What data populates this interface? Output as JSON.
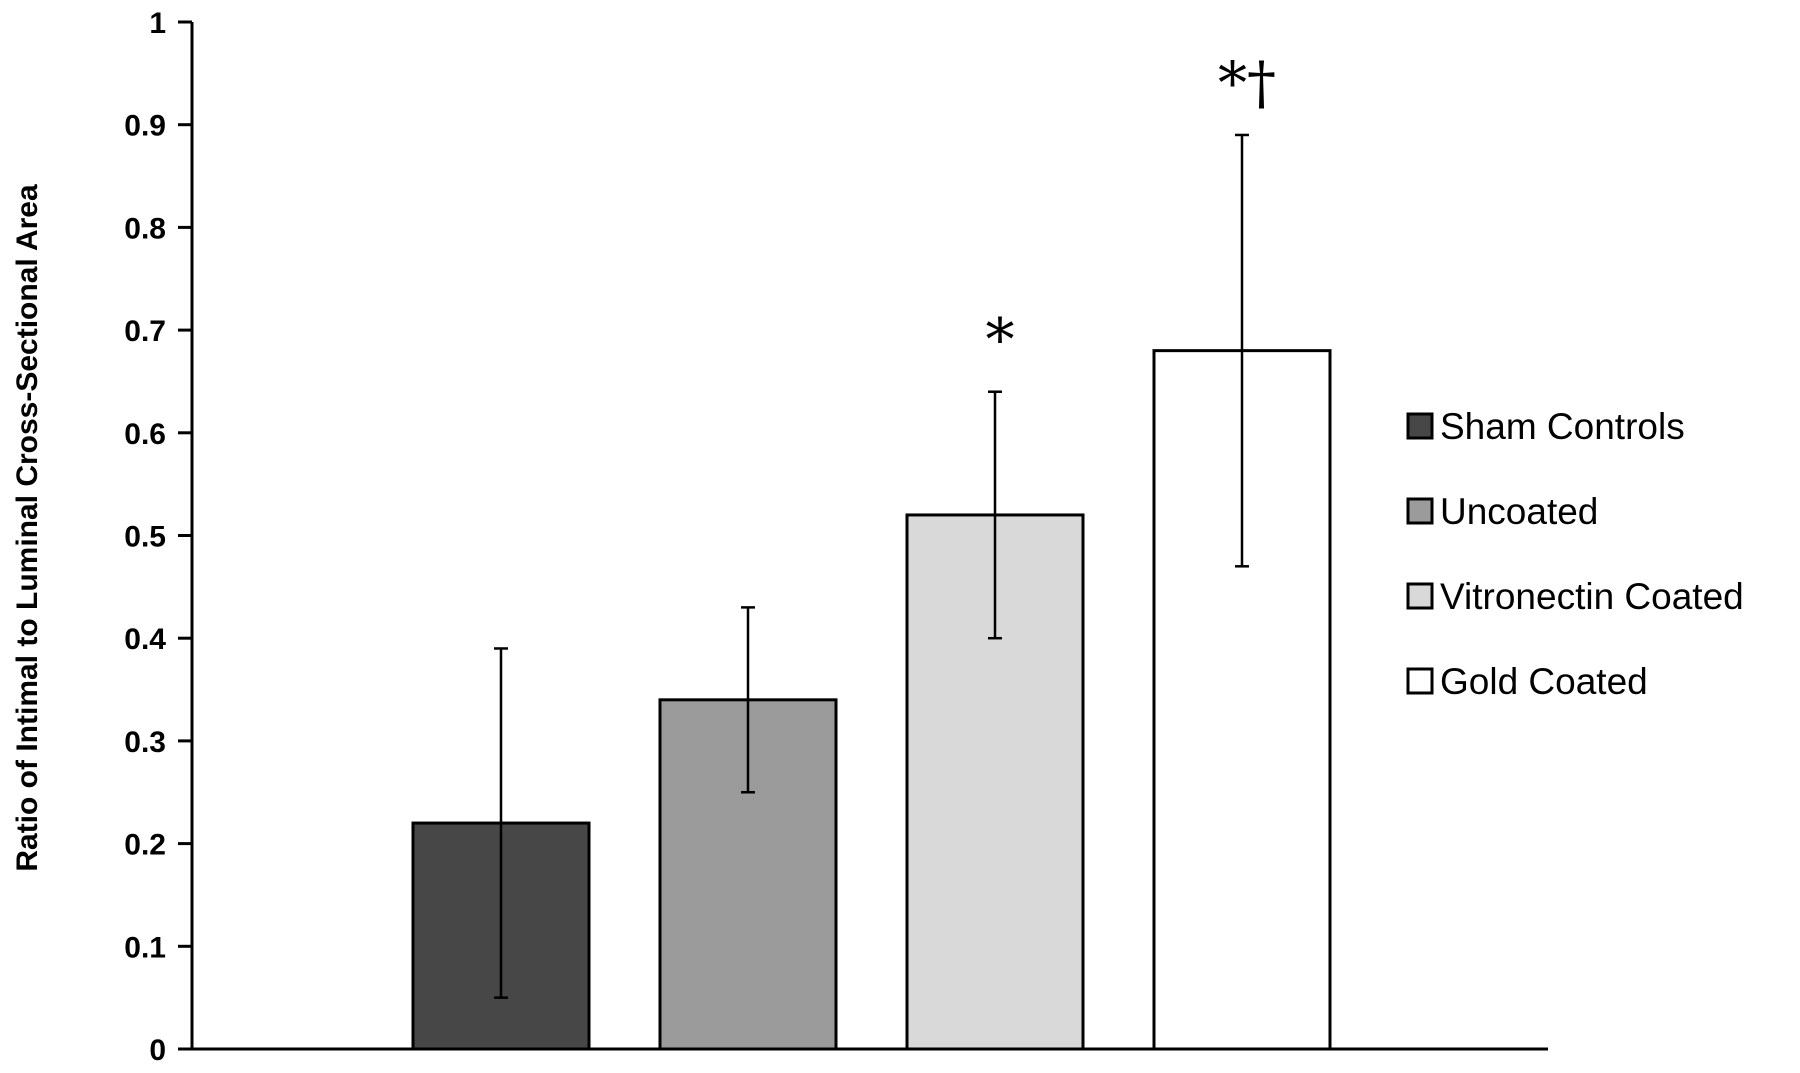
{
  "chart_data": {
    "type": "bar",
    "categories": [
      "Sham Controls",
      "Uncoated",
      "Vitronectin Coated",
      "Gold Coated"
    ],
    "values": [
      0.22,
      0.34,
      0.52,
      0.68
    ],
    "error_low": [
      0.05,
      0.25,
      0.4,
      0.47
    ],
    "error_high": [
      0.39,
      0.43,
      0.64,
      0.89
    ],
    "colors": [
      "#474747",
      "#9b9b9b",
      "#d9d9d9",
      "#ffffff"
    ],
    "annotations": [
      "",
      "",
      "*",
      "*†"
    ],
    "ylabel": "Ratio of Intimal to Luminal Cross-Sectional Area",
    "ylim": [
      0,
      1
    ],
    "yticks": [
      "0",
      "0.1",
      "0.2",
      "0.3",
      "0.4",
      "0.5",
      "0.6",
      "0.7",
      "0.8",
      "0.9",
      "1"
    ],
    "legend": [
      "Sham Controls",
      "Uncoated",
      "Vitronectin Coated",
      "Gold Coated"
    ],
    "legend_position": "right",
    "grid": false
  }
}
